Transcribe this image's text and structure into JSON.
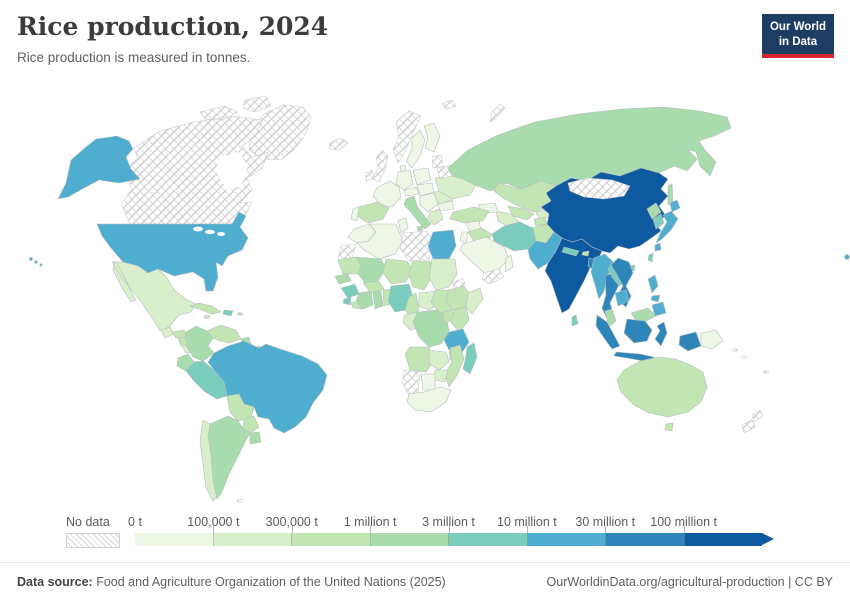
{
  "header": {
    "title": "Rice production, 2024",
    "subtitle": "Rice production is measured in tonnes."
  },
  "logo": {
    "line1": "Our World",
    "line2": "in Data",
    "bg": "#1d3d63",
    "accent": "#d8232a"
  },
  "legend": {
    "no_data_label": "No data",
    "tick_labels": [
      "0 t",
      "100,000 t",
      "300,000 t",
      "1 million t",
      "3 million t",
      "10 million t",
      "30 million t",
      "100 million t"
    ],
    "bin_colors": [
      "#eef7e6",
      "#d9efcb",
      "#c2e6b3",
      "#a9dcad",
      "#7accbd",
      "#4fadd0",
      "#2e85ba",
      "#0d5aa1"
    ]
  },
  "footer": {
    "datasource_label": "Data source:",
    "datasource": " Food and Agriculture Organization of the United Nations (2025)",
    "right": "OurWorldinData.org/agricultural-production | CC BY"
  },
  "chart_data": {
    "type": "choropleth_map",
    "title": "Rice production, 2024",
    "unit": "tonnes",
    "legend_position": "bottom",
    "bins": [
      {
        "range": "0 t – 100,000 t",
        "color": "#eef7e6"
      },
      {
        "range": "100,000 t – 300,000 t",
        "color": "#d9efcb"
      },
      {
        "range": "300,000 t – 1 million t",
        "color": "#c2e6b3"
      },
      {
        "range": "1 million t – 3 million t",
        "color": "#a9dcad"
      },
      {
        "range": "3 million t – 10 million t",
        "color": "#7accbd"
      },
      {
        "range": "10 million t – 30 million t",
        "color": "#4fadd0"
      },
      {
        "range": "30 million t – 100 million t",
        "color": "#2e85ba"
      },
      {
        "range": "100 million t and more",
        "color": "#0d5aa1"
      }
    ],
    "no_data": {
      "label": "No data",
      "style": "hatched"
    },
    "country_bins": {
      "united-states": 6,
      "canada": 0,
      "greenland": 0,
      "mexico": 2,
      "guatemala": 2,
      "honduras": 3,
      "nicaragua": 3,
      "costa-rica": 2,
      "panama": 2,
      "cuba": 3,
      "jamaica": 3,
      "hispaniola": 5,
      "puerto-rico": 3,
      "colombia": 4,
      "venezuela": 3,
      "guyana": 4,
      "suriname": 4,
      "french-guiana": 1,
      "ecuador": 4,
      "peru": 5,
      "brazil": 6,
      "bolivia": 3,
      "paraguay": 3,
      "chile": 2,
      "argentina": 4,
      "uruguay": 4,
      "falkland-islands": 0,
      "iceland": 0,
      "united-kingdom": 0,
      "ireland": 0,
      "norway": 0,
      "sweden": 1,
      "finland": 1,
      "baltic-states": 0,
      "denmark": 1,
      "germany": 1,
      "poland": 1,
      "france": 1,
      "spain": 3,
      "portugal": 1,
      "italy": 4,
      "alpine": 1,
      "central-europe": 1,
      "balkans": 1,
      "greece": 2,
      "romania": 2,
      "bulgaria": 1,
      "ukraine": 2,
      "belarus": 0,
      "russia": 4,
      "svalbard": 0,
      "novaya-zemlya": 0,
      "caucasus": 1,
      "kazakhstan": 3,
      "uzbekistan": 3,
      "turkmenistan": 2,
      "kyrgyzstan": 2,
      "tajikistan": 3,
      "turkey": 3,
      "syria": 1,
      "iraq": 3,
      "jordan-israel": 1,
      "saudi-arabia": 1,
      "yemen": 0,
      "oman": 1,
      "iran": 5,
      "afghanistan": 3,
      "pakistan": 6,
      "india": 8,
      "nepal": 5,
      "bhutan": 3,
      "bangladesh": 7,
      "sri-lanka": 5,
      "china": 8,
      "mongolia": 0,
      "north-korea": 4,
      "south-korea": 5,
      "japan": 6,
      "taiwan": 5,
      "hainan": 5,
      "myanmar": 6,
      "thailand": 7,
      "laos": 5,
      "vietnam": 7,
      "cambodia": 6,
      "malaysia": 4,
      "malaysia-borneo": 4,
      "indonesia": 7,
      "papua-new-guinea": 1,
      "philippines": 6,
      "timor-leste": 1,
      "morocco": 1,
      "western-sahara": 0,
      "algeria": 1,
      "tunisia": 1,
      "libya": 0,
      "egypt": 6,
      "mauritania": 3,
      "mali": 4,
      "niger": 3,
      "chad": 3,
      "sudan": 2,
      "eritrea": 0,
      "ethiopia": 3,
      "somalia": 2,
      "senegal": 4,
      "guinea": 5,
      "sierra-leone": 5,
      "liberia": 3,
      "cote-divoire": 4,
      "ghana": 4,
      "togo-benin": 3,
      "burkina-faso": 3,
      "nigeria": 5,
      "cameroon": 3,
      "central-african-republic": 2,
      "south-sudan": 3,
      "gabon-congo": 2,
      "dr-congo": 4,
      "uganda": 3,
      "kenya": 3,
      "tanzania": 6,
      "angola": 3,
      "zambia": 2,
      "malawi": 3,
      "mozambique": 3,
      "zimbabwe": 2,
      "botswana": 1,
      "namibia": 0,
      "south-africa": 1,
      "madagascar": 5,
      "australia": 3,
      "tasmania": 3,
      "new-zealand": 0,
      "melanesia": 0
    }
  }
}
